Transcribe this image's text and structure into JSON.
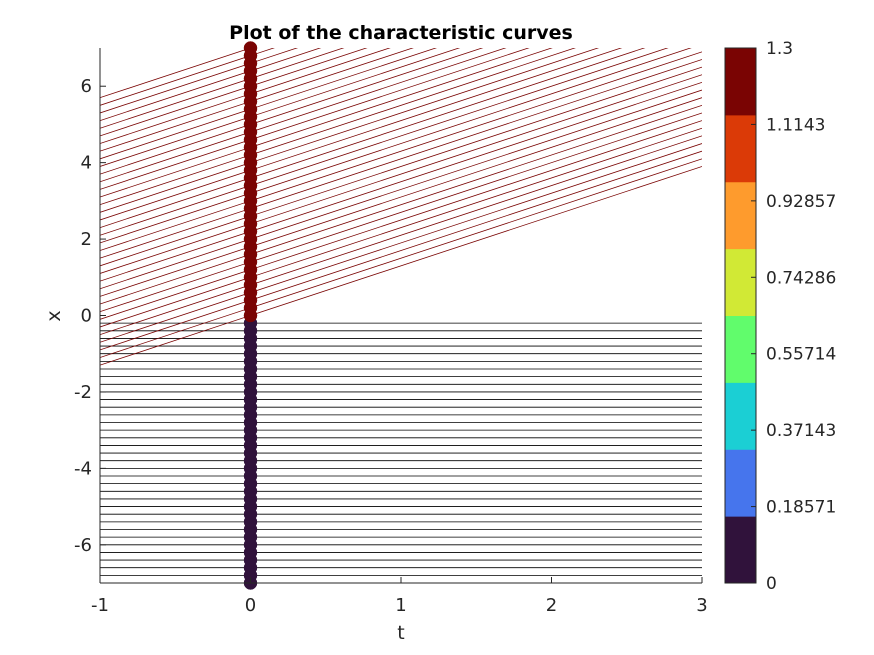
{
  "chart_data": {
    "type": "line",
    "title": "Plot of the characteristic curves",
    "xlabel": "t",
    "ylabel": "x",
    "xlim": [
      -1,
      3
    ],
    "ylim": [
      -7,
      7
    ],
    "xticks": [
      "-1",
      "0",
      "1",
      "2",
      "3"
    ],
    "yticks": [
      "-6",
      "-4",
      "-2",
      "0",
      "2",
      "4",
      "6"
    ],
    "grid": false,
    "initial_data": {
      "description_free": true,
      "x_start": -7,
      "x_end": 7,
      "step": 0.2,
      "value_left": 0,
      "value_right": 1.3,
      "discontinuity_x": 0
    },
    "characteristics": {
      "left_slope": 0,
      "right_slope": 1.3,
      "left_color": "#000000",
      "right_color": "#7a0403"
    },
    "colorbar": {
      "ticks": [
        "1.3",
        "1.1143",
        "0.92857",
        "0.74286",
        "0.55714",
        "0.37143",
        "0.18571",
        "0"
      ],
      "tick_values": [
        1.3,
        1.1143,
        0.92857,
        0.74286,
        0.55714,
        0.37143,
        0.18571,
        0
      ],
      "colors": [
        "#30123b",
        "#4675ed",
        "#1bcfd4",
        "#61fc6c",
        "#d1e935",
        "#fe9b2d",
        "#db3a07",
        "#7a0403"
      ]
    }
  }
}
